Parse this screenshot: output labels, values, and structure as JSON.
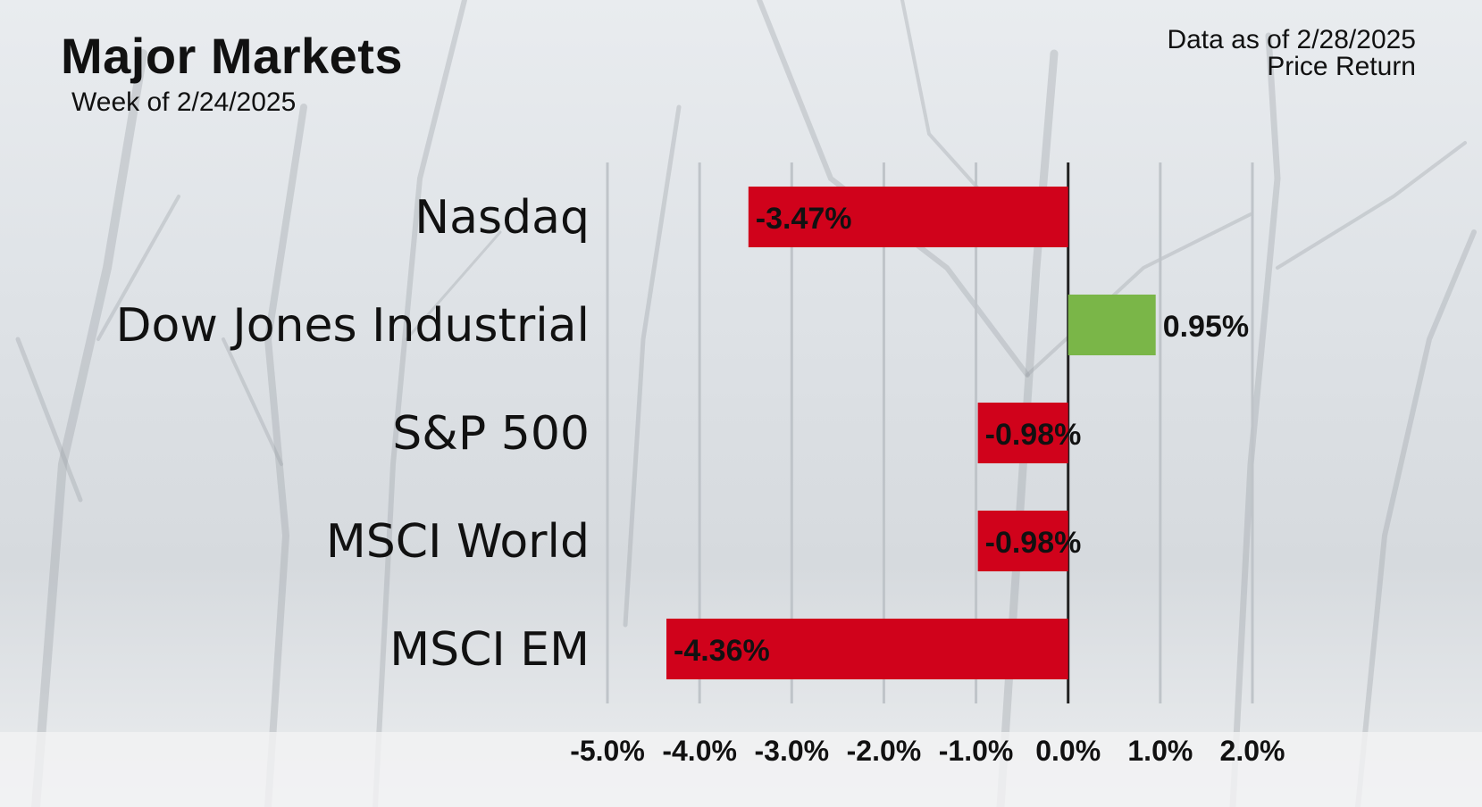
{
  "header": {
    "title": "Major Markets",
    "subtitle": "Week of 2/24/2025",
    "as_of": "Data as of 2/28/2025",
    "return_type": "Price Return"
  },
  "colors": {
    "negative": "#d0021b",
    "positive": "#7ab648",
    "text": "#111111",
    "gridline": "#bfc4c9"
  },
  "chart_data": {
    "type": "bar",
    "orientation": "horizontal",
    "title": "Major Markets",
    "subtitle": "Week of 2/24/2025",
    "categories": [
      "Nasdaq",
      "Dow Jones Industrial",
      "S&P 500",
      "MSCI World",
      "MSCI EM"
    ],
    "values": [
      -3.47,
      0.95,
      -0.98,
      -0.98,
      -4.36
    ],
    "value_labels": [
      "-3.47%",
      "0.95%",
      "-0.98%",
      "-0.98%",
      "-4.36%"
    ],
    "xlim": [
      -5.0,
      2.0
    ],
    "x_ticks": [
      -5.0,
      -4.0,
      -3.0,
      -2.0,
      -1.0,
      0.0,
      1.0,
      2.0
    ],
    "x_tick_labels": [
      "-5.0%",
      "-4.0%",
      "-3.0%",
      "-2.0%",
      "-1.0%",
      "0.0%",
      "1.0%",
      "2.0%"
    ],
    "grid": true,
    "xlabel": "",
    "ylabel": ""
  }
}
